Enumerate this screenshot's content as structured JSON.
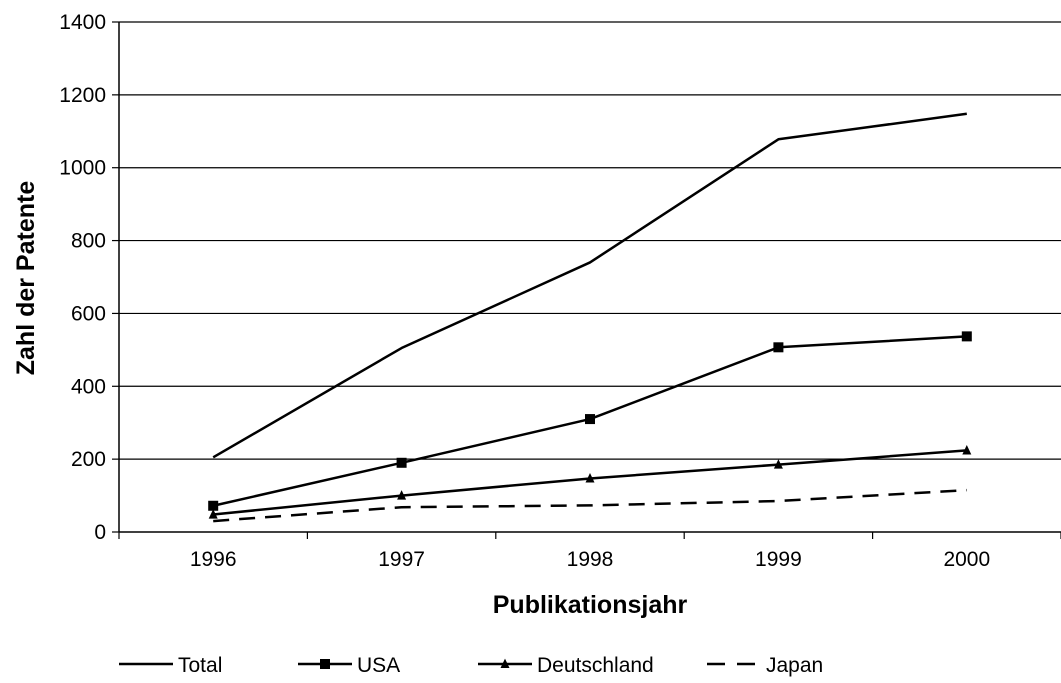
{
  "chart_data": {
    "type": "line",
    "title": "",
    "xlabel": "Publikationsjahr",
    "ylabel": "Zahl der Patente",
    "categories": [
      "1996",
      "1997",
      "1998",
      "1999",
      "2000"
    ],
    "ylim": [
      0,
      1400
    ],
    "yticks": [
      "0",
      "200",
      "400",
      "600",
      "800",
      "1000",
      "1200",
      "1400"
    ],
    "grid": "horizontal",
    "legend_position": "bottom",
    "series": [
      {
        "name": "Total",
        "values": [
          205,
          505,
          740,
          1078,
          1148
        ],
        "marker": "none",
        "dash": "solid",
        "color": "#000000"
      },
      {
        "name": "USA",
        "values": [
          72,
          190,
          310,
          507,
          537
        ],
        "marker": "square",
        "dash": "solid",
        "color": "#000000"
      },
      {
        "name": "Deutschland",
        "values": [
          48,
          100,
          147,
          185,
          224
        ],
        "marker": "triangle",
        "dash": "solid",
        "color": "#000000"
      },
      {
        "name": "Japan",
        "values": [
          30,
          68,
          73,
          85,
          115
        ],
        "marker": "none",
        "dash": "dashed",
        "color": "#000000"
      }
    ]
  }
}
